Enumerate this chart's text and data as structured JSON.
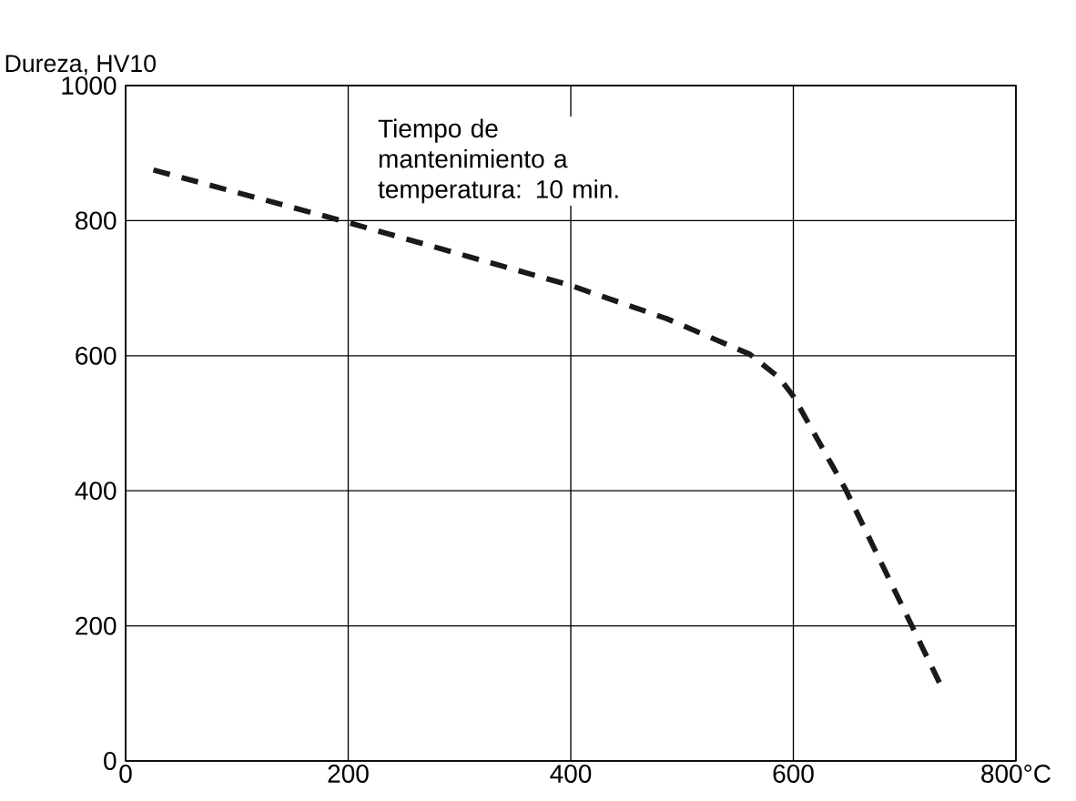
{
  "chart_data": {
    "type": "line",
    "ylabel": "Dureza, HV10",
    "annotations": [
      {
        "text": "Tiempo de mantenimiento a temperatura: 10 min."
      }
    ],
    "x": [
      25,
      194,
      400,
      486,
      561,
      587,
      600,
      647,
      733
    ],
    "series": [
      {
        "color": "#1a1a1a",
        "values": [
          875,
          800,
          704,
          655,
          602,
          568,
          540,
          402,
          110
        ]
      }
    ],
    "xlim": [
      0,
      800
    ],
    "ylim": [
      0,
      1000
    ],
    "xticks": [
      0,
      200,
      400,
      600,
      {
        "value": 800,
        "label": "800°C"
      }
    ],
    "yticks": [
      0,
      200,
      400,
      600,
      800,
      1000
    ],
    "grid": true,
    "line_style": "dashed",
    "marker": "none"
  }
}
